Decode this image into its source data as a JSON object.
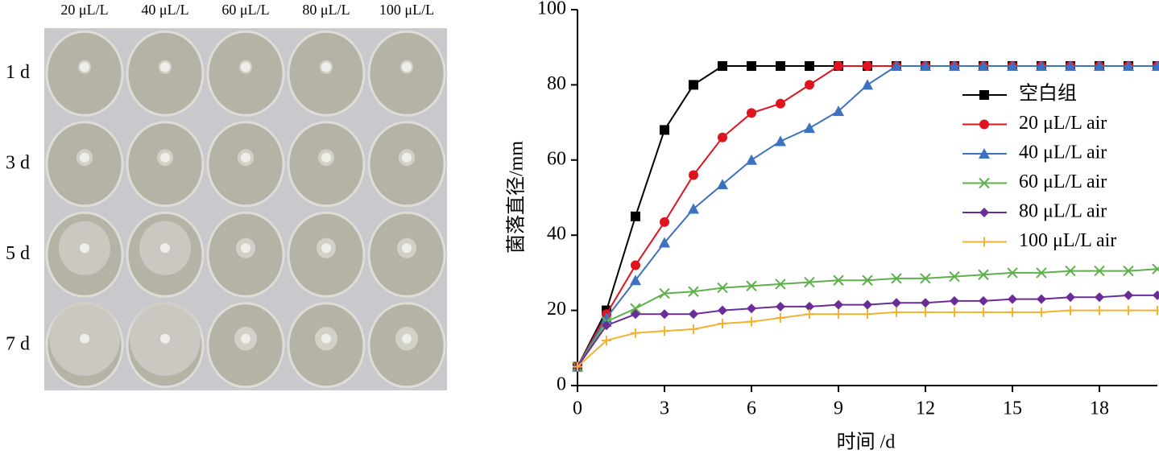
{
  "photo_panel": {
    "columns": [
      "20 μL/L",
      "40 μL/L",
      "60 μL/L",
      "80 μL/L",
      "100 μL/L"
    ],
    "rows": [
      "1 d",
      "3 d",
      "5 d",
      "7 d"
    ]
  },
  "chart_data": {
    "type": "line",
    "x_label": "时间 /d",
    "y_label": "菌落直径/mm",
    "x": [
      0,
      1,
      2,
      3,
      4,
      5,
      6,
      7,
      8,
      9,
      10,
      11,
      12,
      13,
      14,
      15,
      16,
      17,
      18,
      19,
      20
    ],
    "xlim": [
      0,
      20
    ],
    "xticks": [
      0,
      3,
      6,
      9,
      12,
      15,
      18
    ],
    "ylim": [
      0,
      100
    ],
    "yticks": [
      0,
      20,
      40,
      60,
      80,
      100
    ],
    "legend": "upper right",
    "series": [
      {
        "name": "空白组",
        "color": "#000000",
        "marker": "square",
        "values": [
          5,
          20,
          45,
          68,
          80,
          85,
          85,
          85,
          85,
          85,
          85,
          85,
          85,
          85,
          85,
          85,
          85,
          85,
          85,
          85,
          85
        ]
      },
      {
        "name": "20 μL/L air",
        "color": "#e0141e",
        "marker": "circle",
        "values": [
          5,
          19,
          32,
          43.5,
          56,
          66,
          72.5,
          75,
          80,
          85,
          85,
          85,
          85,
          85,
          85,
          85,
          85,
          85,
          85,
          85,
          85
        ]
      },
      {
        "name": "40 μL/L air",
        "color": "#3d72c0",
        "marker": "triangle",
        "values": [
          5,
          18,
          28,
          38,
          47,
          53.5,
          60,
          65,
          68.5,
          73,
          80,
          85,
          85,
          85,
          85,
          85,
          85,
          85,
          85,
          85,
          85
        ]
      },
      {
        "name": "60 μL/L air",
        "color": "#5db04a",
        "marker": "x",
        "values": [
          5,
          17,
          20.5,
          24.5,
          25,
          26,
          26.5,
          27,
          27.5,
          28,
          28,
          28.5,
          28.5,
          29,
          29.5,
          30,
          30,
          30.5,
          30.5,
          30.5,
          31
        ]
      },
      {
        "name": "80 μL/L air",
        "color": "#6a2c96",
        "marker": "diamond",
        "values": [
          5,
          16,
          19,
          19,
          19,
          20,
          20.5,
          21,
          21,
          21.5,
          21.5,
          22,
          22,
          22.5,
          22.5,
          23,
          23,
          23.5,
          23.5,
          24,
          24
        ]
      },
      {
        "name": "100 μL/L air",
        "color": "#f2b233",
        "marker": "plus",
        "values": [
          5,
          12,
          14,
          14.5,
          15,
          16.5,
          17,
          18,
          19,
          19,
          19,
          19.5,
          19.5,
          19.5,
          19.5,
          19.5,
          19.5,
          20,
          20,
          20,
          20
        ]
      }
    ]
  }
}
